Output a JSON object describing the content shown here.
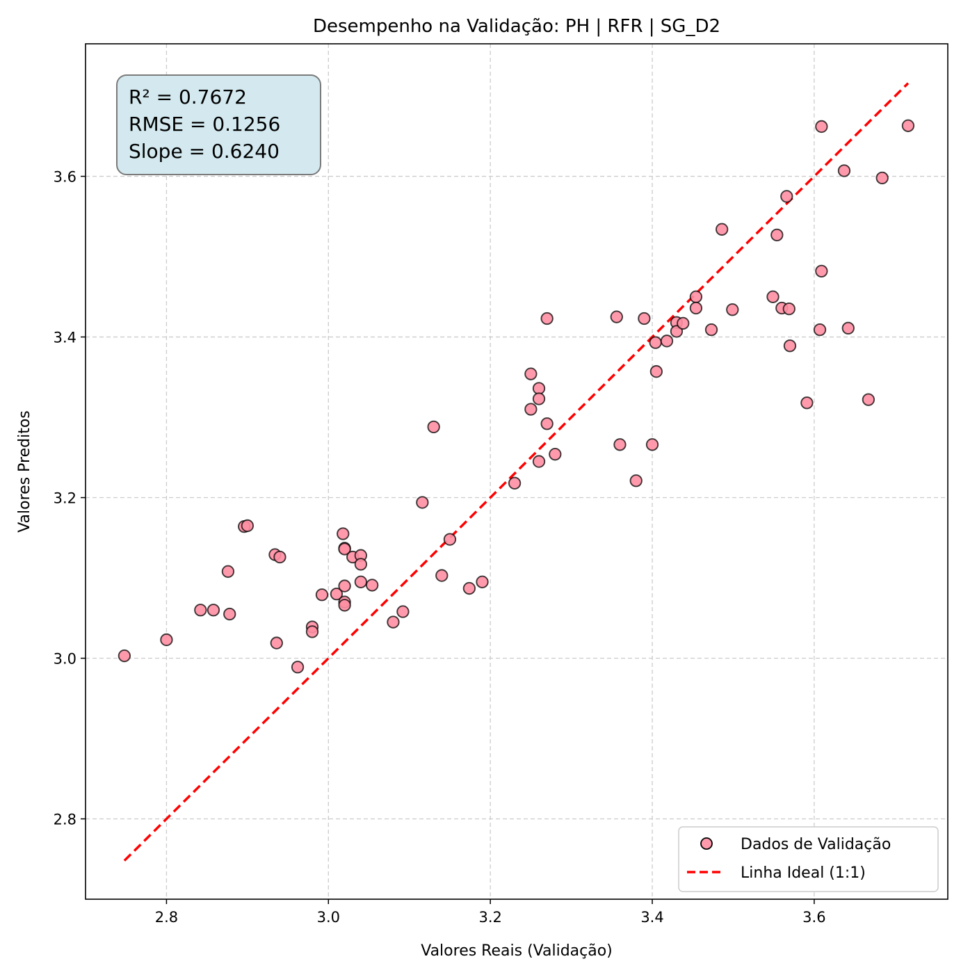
{
  "chart_data": {
    "type": "scatter",
    "title": "Desempenho na Validação: PH | RFR | SG_D2",
    "xlabel": "Valores Reais (Validação)",
    "ylabel": "Valores Preditos",
    "xlim": [
      2.7,
      3.765
    ],
    "ylim": [
      2.7,
      3.765
    ],
    "xticks": [
      "2.8",
      "3.0",
      "3.2",
      "3.4",
      "3.6"
    ],
    "yticks": [
      "2.8",
      "3.0",
      "3.2",
      "3.4",
      "3.6"
    ],
    "grid": true,
    "legend_position": "bottom-right",
    "stats": [
      "R² = 0.7672",
      "RMSE = 0.1256",
      "Slope = 0.6240"
    ],
    "colors": {
      "points_fill": "#ff8fa3",
      "points_edge": "#000000",
      "ideal_line": "#ff0000",
      "stats_box_fill": "#d3e9ef",
      "stats_box_edge": "#7a7a7a",
      "grid": "#cccccc"
    },
    "series": [
      {
        "name": "Dados de Validação",
        "kind": "scatter",
        "points": [
          [
            2.748,
            3.003
          ],
          [
            2.8,
            3.023
          ],
          [
            2.842,
            3.06
          ],
          [
            2.858,
            3.06
          ],
          [
            2.876,
            3.108
          ],
          [
            2.878,
            3.055
          ],
          [
            2.896,
            3.164
          ],
          [
            2.9,
            3.165
          ],
          [
            2.934,
            3.129
          ],
          [
            2.936,
            3.019
          ],
          [
            2.94,
            3.126
          ],
          [
            2.962,
            2.989
          ],
          [
            2.98,
            3.039
          ],
          [
            2.98,
            3.033
          ],
          [
            2.992,
            3.079
          ],
          [
            3.01,
            3.08
          ],
          [
            3.018,
            3.155
          ],
          [
            3.02,
            3.137
          ],
          [
            3.02,
            3.136
          ],
          [
            3.02,
            3.09
          ],
          [
            3.02,
            3.07
          ],
          [
            3.02,
            3.066
          ],
          [
            3.03,
            3.126
          ],
          [
            3.04,
            3.128
          ],
          [
            3.04,
            3.117
          ],
          [
            3.04,
            3.095
          ],
          [
            3.054,
            3.091
          ],
          [
            3.08,
            3.045
          ],
          [
            3.092,
            3.058
          ],
          [
            3.116,
            3.194
          ],
          [
            3.13,
            3.288
          ],
          [
            3.14,
            3.103
          ],
          [
            3.15,
            3.148
          ],
          [
            3.174,
            3.087
          ],
          [
            3.19,
            3.095
          ],
          [
            3.23,
            3.218
          ],
          [
            3.25,
            3.354
          ],
          [
            3.25,
            3.31
          ],
          [
            3.26,
            3.336
          ],
          [
            3.26,
            3.323
          ],
          [
            3.26,
            3.245
          ],
          [
            3.27,
            3.423
          ],
          [
            3.27,
            3.292
          ],
          [
            3.28,
            3.254
          ],
          [
            3.356,
            3.425
          ],
          [
            3.36,
            3.266
          ],
          [
            3.38,
            3.221
          ],
          [
            3.39,
            3.423
          ],
          [
            3.4,
            3.266
          ],
          [
            3.404,
            3.393
          ],
          [
            3.405,
            3.357
          ],
          [
            3.418,
            3.395
          ],
          [
            3.43,
            3.418
          ],
          [
            3.43,
            3.407
          ],
          [
            3.438,
            3.417
          ],
          [
            3.454,
            3.45
          ],
          [
            3.454,
            3.436
          ],
          [
            3.473,
            3.409
          ],
          [
            3.486,
            3.534
          ],
          [
            3.499,
            3.434
          ],
          [
            3.549,
            3.45
          ],
          [
            3.554,
            3.527
          ],
          [
            3.56,
            3.436
          ],
          [
            3.566,
            3.575
          ],
          [
            3.569,
            3.435
          ],
          [
            3.57,
            3.389
          ],
          [
            3.591,
            3.318
          ],
          [
            3.607,
            3.409
          ],
          [
            3.609,
            3.482
          ],
          [
            3.609,
            3.662
          ],
          [
            3.637,
            3.607
          ],
          [
            3.642,
            3.411
          ],
          [
            3.667,
            3.322
          ],
          [
            3.684,
            3.598
          ],
          [
            3.716,
            3.663
          ]
        ]
      },
      {
        "name": "Linha Ideal (1:1)",
        "kind": "line",
        "points": [
          [
            2.748,
            2.748
          ],
          [
            3.716,
            3.716
          ]
        ]
      }
    ]
  }
}
